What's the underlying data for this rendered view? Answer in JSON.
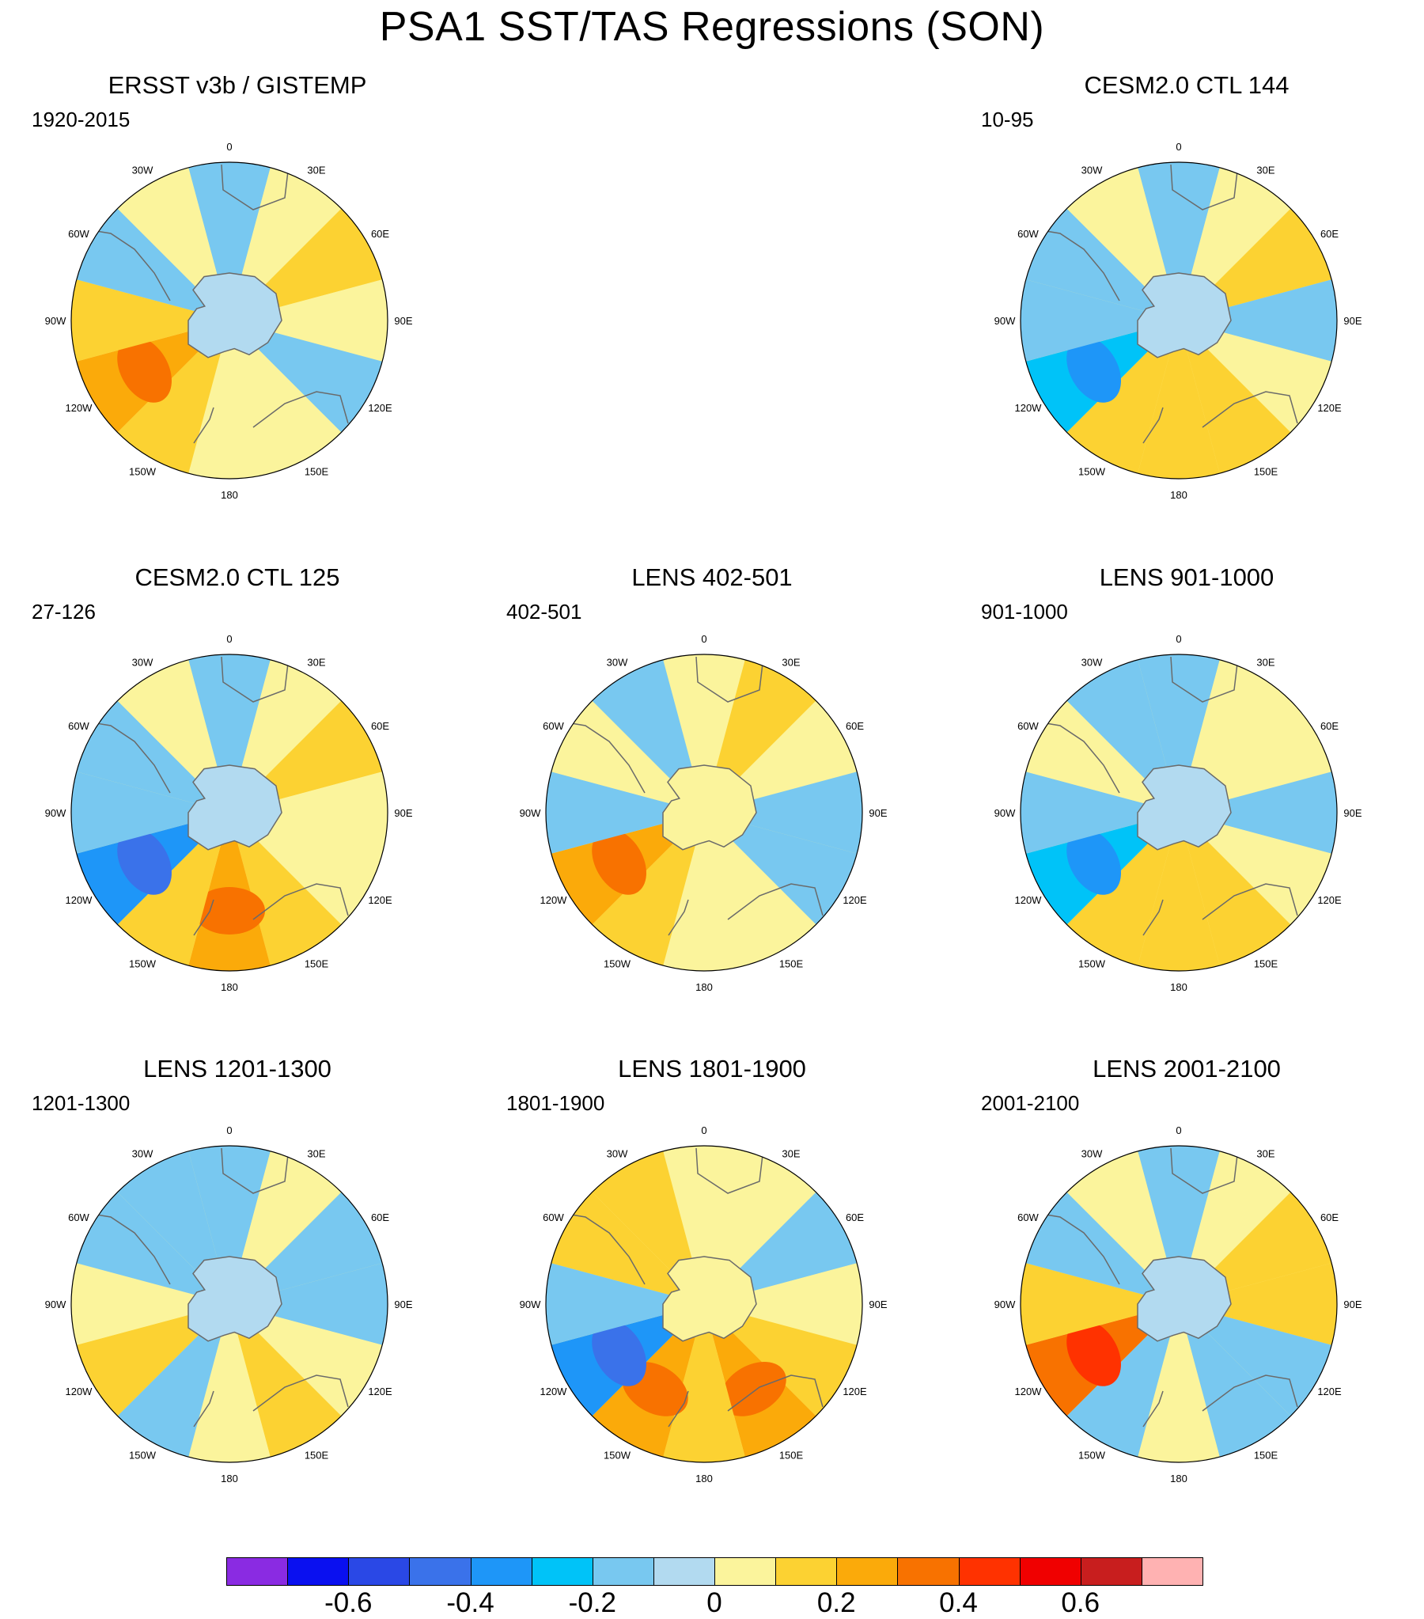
{
  "title": "PSA1 SST/TAS Regressions (SON)",
  "longitude_labels": [
    "0",
    "30E",
    "60E",
    "90E",
    "120E",
    "150E",
    "180",
    "150W",
    "120W",
    "90W",
    "60W",
    "30W"
  ],
  "panels": [
    {
      "title": "ERSST v3b / GISTEMP",
      "period": "1920-2015",
      "pattern": [
        -1,
        0,
        1,
        0,
        -1,
        0,
        0,
        1,
        2,
        1,
        -1,
        0
      ]
    },
    {
      "title": "CESM2.0 CTL 144",
      "period": "10-95",
      "pattern": [
        -1,
        0,
        1,
        -1,
        0,
        1,
        1,
        1,
        -2,
        -1,
        -1,
        0
      ]
    },
    {
      "title": "CESM2.0 CTL 125",
      "period": "27-126",
      "pattern": [
        -1,
        0,
        1,
        0,
        0,
        1,
        2,
        1,
        -3,
        -1,
        -1,
        0
      ]
    },
    {
      "title": "LENS 402-501",
      "period": "402-501",
      "pattern": [
        0,
        1,
        0,
        -1,
        -1,
        0,
        0,
        1,
        2,
        -1,
        0,
        -1
      ]
    },
    {
      "title": "LENS 901-1000",
      "period": "901-1000",
      "pattern": [
        -1,
        0,
        0,
        -1,
        0,
        1,
        1,
        1,
        -2,
        -1,
        0,
        -1
      ]
    },
    {
      "title": "LENS 1201-1300",
      "period": "1201-1300",
      "pattern": [
        -1,
        0,
        -1,
        -1,
        0,
        1,
        0,
        -1,
        1,
        0,
        -1,
        -1
      ]
    },
    {
      "title": "LENS 1801-1900",
      "period": "1801-1900",
      "pattern": [
        0,
        0,
        -1,
        0,
        1,
        2,
        1,
        2,
        -3,
        -1,
        1,
        1
      ]
    },
    {
      "title": "LENS 2001-2100",
      "period": "2001-2100",
      "pattern": [
        -1,
        0,
        1,
        1,
        -1,
        -1,
        0,
        -1,
        3,
        1,
        -1,
        0
      ]
    }
  ],
  "colorbar": {
    "colors": [
      "#8a2be2",
      "#0a10f0",
      "#2a48e6",
      "#3a72ea",
      "#1e96f8",
      "#00c3f8",
      "#78c8f0",
      "#b2daf0",
      "#fbf49c",
      "#fcd232",
      "#fbaa0a",
      "#f87200",
      "#ff3200",
      "#f00000",
      "#c81e1e",
      "#ffb2b2"
    ],
    "labels": [
      "-0.6",
      "-0.4",
      "-0.2",
      "0",
      "0.2",
      "0.4",
      "0.6"
    ],
    "values": [
      -0.6,
      -0.4,
      -0.2,
      0,
      0.2,
      0.4,
      0.6
    ]
  }
}
